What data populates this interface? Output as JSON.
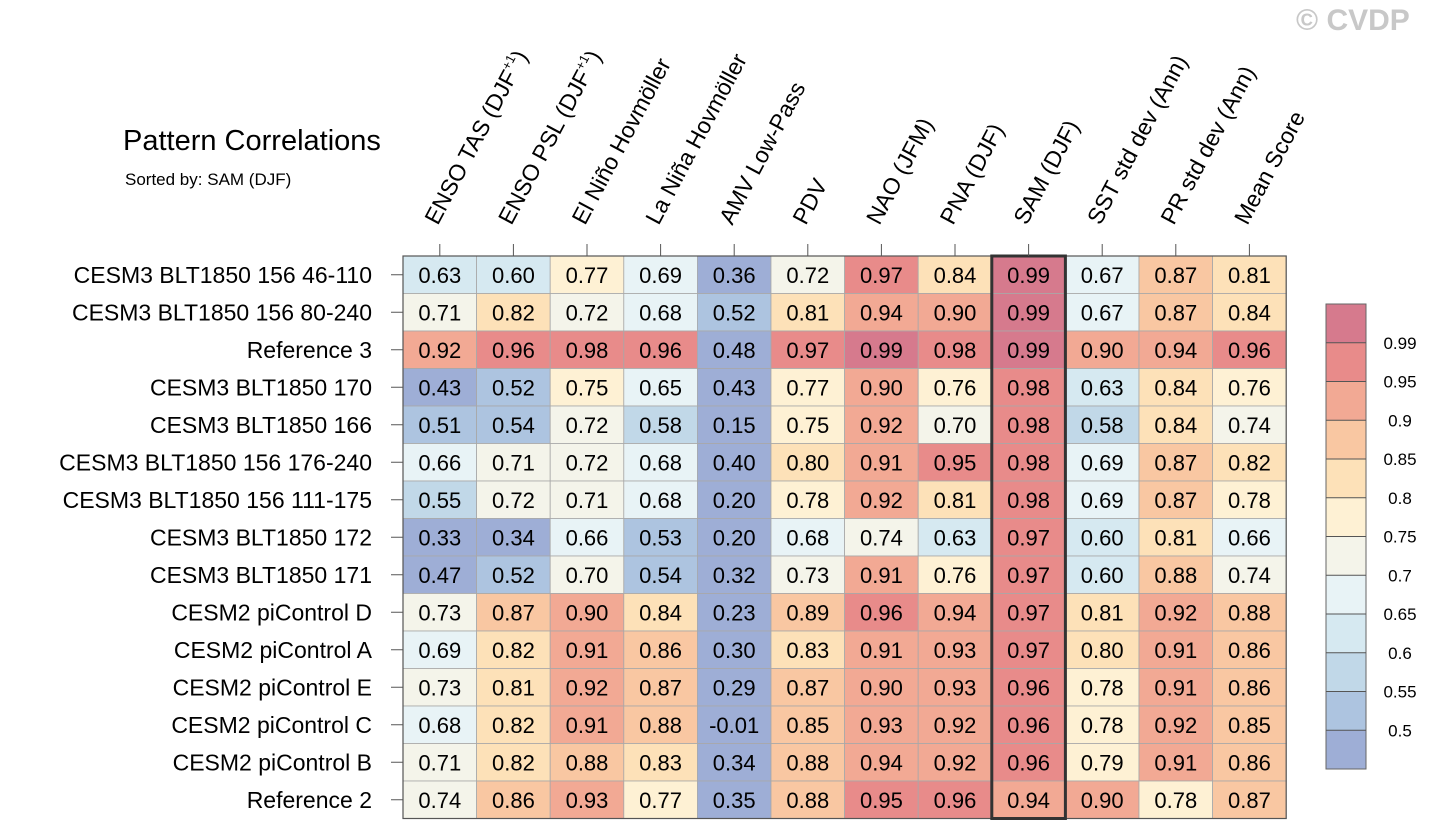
{
  "watermark": "© CVDP",
  "header": {
    "title": "Pattern Correlations",
    "sorted_prefix": "Sorted by:",
    "sorted_by": "SAM (DJF)"
  },
  "chart_data": {
    "type": "heatmap",
    "title": "Pattern Correlations",
    "highlight_column": "SAM (DJF)",
    "columns": [
      {
        "label": "ENSO TAS (DJF",
        "sup": "+1",
        "tail": ")"
      },
      {
        "label": "ENSO PSL (DJF",
        "sup": "+1",
        "tail": ")"
      },
      {
        "label": "El Niño Hovmöller",
        "sup": "",
        "tail": ""
      },
      {
        "label": "La Niña Hovmöller",
        "sup": "",
        "tail": ""
      },
      {
        "label": "AMV Low-Pass",
        "sup": "",
        "tail": ""
      },
      {
        "label": "PDV",
        "sup": "",
        "tail": ""
      },
      {
        "label": "NAO (JFM)",
        "sup": "",
        "tail": ""
      },
      {
        "label": "PNA (DJF)",
        "sup": "",
        "tail": ""
      },
      {
        "label": "SAM (DJF)",
        "sup": "",
        "tail": ""
      },
      {
        "label": "SST std dev (Ann)",
        "sup": "",
        "tail": ""
      },
      {
        "label": "PR std dev (Ann)",
        "sup": "",
        "tail": ""
      },
      {
        "label": "Mean Score",
        "sup": "",
        "tail": ""
      }
    ],
    "rows": [
      {
        "name": "CESM3 BLT1850 156 46-110",
        "values": [
          "0.63",
          "0.60",
          "0.77",
          "0.69",
          "0.36",
          "0.72",
          "0.97",
          "0.84",
          "0.99",
          "0.67",
          "0.87",
          "0.81"
        ]
      },
      {
        "name": "CESM3 BLT1850 156 80-240",
        "values": [
          "0.71",
          "0.82",
          "0.72",
          "0.68",
          "0.52",
          "0.81",
          "0.94",
          "0.90",
          "0.99",
          "0.67",
          "0.87",
          "0.84"
        ]
      },
      {
        "name": "Reference 3",
        "values": [
          "0.92",
          "0.96",
          "0.98",
          "0.96",
          "0.48",
          "0.97",
          "0.99",
          "0.98",
          "0.99",
          "0.90",
          "0.94",
          "0.96"
        ]
      },
      {
        "name": "CESM3 BLT1850 170",
        "values": [
          "0.43",
          "0.52",
          "0.75",
          "0.65",
          "0.43",
          "0.77",
          "0.90",
          "0.76",
          "0.98",
          "0.63",
          "0.84",
          "0.76"
        ]
      },
      {
        "name": "CESM3 BLT1850 166",
        "values": [
          "0.51",
          "0.54",
          "0.72",
          "0.58",
          "0.15",
          "0.75",
          "0.92",
          "0.70",
          "0.98",
          "0.58",
          "0.84",
          "0.74"
        ]
      },
      {
        "name": "CESM3 BLT1850 156 176-240",
        "values": [
          "0.66",
          "0.71",
          "0.72",
          "0.68",
          "0.40",
          "0.80",
          "0.91",
          "0.95",
          "0.98",
          "0.69",
          "0.87",
          "0.82"
        ]
      },
      {
        "name": "CESM3 BLT1850 156 111-175",
        "values": [
          "0.55",
          "0.72",
          "0.71",
          "0.68",
          "0.20",
          "0.78",
          "0.92",
          "0.81",
          "0.98",
          "0.69",
          "0.87",
          "0.78"
        ]
      },
      {
        "name": "CESM3 BLT1850 172",
        "values": [
          "0.33",
          "0.34",
          "0.66",
          "0.53",
          "0.20",
          "0.68",
          "0.74",
          "0.63",
          "0.97",
          "0.60",
          "0.81",
          "0.66"
        ]
      },
      {
        "name": "CESM3 BLT1850 171",
        "values": [
          "0.47",
          "0.52",
          "0.70",
          "0.54",
          "0.32",
          "0.73",
          "0.91",
          "0.76",
          "0.97",
          "0.60",
          "0.88",
          "0.74"
        ]
      },
      {
        "name": "CESM2 piControl D",
        "values": [
          "0.73",
          "0.87",
          "0.90",
          "0.84",
          "0.23",
          "0.89",
          "0.96",
          "0.94",
          "0.97",
          "0.81",
          "0.92",
          "0.88"
        ]
      },
      {
        "name": "CESM2 piControl A",
        "values": [
          "0.69",
          "0.82",
          "0.91",
          "0.86",
          "0.30",
          "0.83",
          "0.91",
          "0.93",
          "0.97",
          "0.80",
          "0.91",
          "0.86"
        ]
      },
      {
        "name": "CESM2 piControl E",
        "values": [
          "0.73",
          "0.81",
          "0.92",
          "0.87",
          "0.29",
          "0.87",
          "0.90",
          "0.93",
          "0.96",
          "0.78",
          "0.91",
          "0.86"
        ]
      },
      {
        "name": "CESM2 piControl C",
        "values": [
          "0.68",
          "0.82",
          "0.91",
          "0.88",
          "-0.01",
          "0.85",
          "0.93",
          "0.92",
          "0.96",
          "0.78",
          "0.92",
          "0.85"
        ]
      },
      {
        "name": "CESM2 piControl B",
        "values": [
          "0.71",
          "0.82",
          "0.88",
          "0.83",
          "0.34",
          "0.88",
          "0.94",
          "0.92",
          "0.96",
          "0.79",
          "0.91",
          "0.86"
        ]
      },
      {
        "name": "Reference 2",
        "values": [
          "0.74",
          "0.86",
          "0.93",
          "0.77",
          "0.35",
          "0.88",
          "0.95",
          "0.96",
          "0.94",
          "0.90",
          "0.78",
          "0.87"
        ]
      }
    ],
    "colorbar": {
      "levels": [
        "0.5",
        "0.55",
        "0.6",
        "0.65",
        "0.7",
        "0.75",
        "0.8",
        "0.85",
        "0.9",
        "0.95",
        "0.99"
      ],
      "level_values": [
        0.5,
        0.55,
        0.6,
        0.65,
        0.7,
        0.75,
        0.8,
        0.85,
        0.9,
        0.95,
        0.99
      ],
      "colors": [
        "#9eaed6",
        "#adc4e0",
        "#c1d8e8",
        "#d6e9f1",
        "#e8f3f6",
        "#f4f4ea",
        "#fef1d4",
        "#fde1b8",
        "#f9c7a2",
        "#f2a994",
        "#e88b8a",
        "#d67a8d"
      ]
    }
  }
}
